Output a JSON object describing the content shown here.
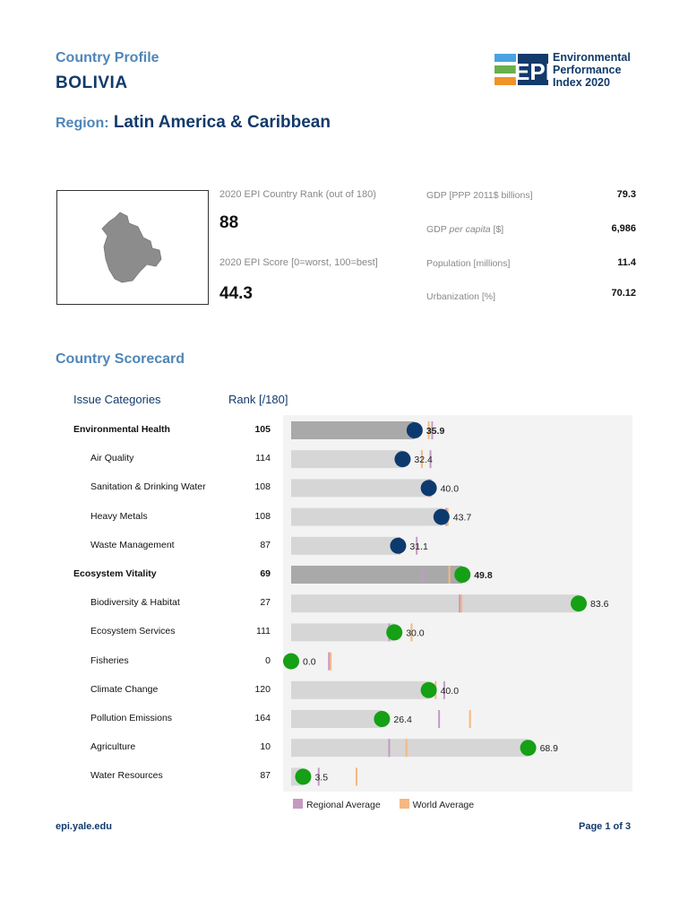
{
  "header": {
    "profile_label": "Country Profile",
    "country": "BOLIVIA",
    "region_label": "Region:",
    "region_value": "Latin America & Caribbean"
  },
  "logo": {
    "acronym": "EPI",
    "lines": [
      "Environmental",
      "Performance",
      "Index 2020"
    ],
    "bar_colors": [
      "#4aa3df",
      "#6ab04c",
      "#f0932b"
    ],
    "block_color": "#123a6b"
  },
  "summary": {
    "rank_label": "2020 EPI Country Rank (out of 180)",
    "rank_value": "88",
    "score_label": "2020 EPI Score [0=worst, 100=best]",
    "score_value": "44.3"
  },
  "stats": [
    {
      "label": "GDP [PPP 2011$ billions]",
      "value": "79.3"
    },
    {
      "label_pre": "GDP ",
      "label_em": "per capita",
      "label_post": " [$]",
      "value": "6,986"
    },
    {
      "label": "Population [millions]",
      "value": "11.4"
    },
    {
      "label": "Urbanization [%]",
      "value": "70.12"
    }
  ],
  "scorecard": {
    "title": "Country Scorecard",
    "issue_header": "Issue Categories",
    "rank_header": "Rank [/180]"
  },
  "chart_data": {
    "type": "bar",
    "xlim": [
      0,
      100
    ],
    "colors": {
      "group_bar": "#a9a9a9",
      "sub_bar": "#d6d6d6",
      "health_dot": "#0d3a6e",
      "vitality_dot": "#15a015",
      "regional": "#c49ac3",
      "world": "#f5b880"
    },
    "legend": [
      "Regional Average",
      "World Average"
    ],
    "rows": [
      {
        "name": "Environmental Health",
        "rank": "105",
        "score": 35.9,
        "label": "35.9",
        "group": true,
        "kind": "health",
        "regional": 41.0,
        "world": 40.0
      },
      {
        "name": "Air Quality",
        "rank": "114",
        "score": 32.4,
        "label": "32.4",
        "group": false,
        "kind": "health",
        "regional": 40.5,
        "world": 38.0
      },
      {
        "name": "Sanitation & Drinking Water",
        "rank": "108",
        "score": 40.0,
        "label": "40.0",
        "group": false,
        "kind": "health",
        "regional": 40.5,
        "world": 40.0
      },
      {
        "name": "Heavy Metals",
        "rank": "108",
        "score": 43.7,
        "label": "43.7",
        "group": false,
        "kind": "health",
        "regional": 45.0,
        "world": 45.5
      },
      {
        "name": "Waste Management",
        "rank": "87",
        "score": 31.1,
        "label": "31.1",
        "group": false,
        "kind": "health",
        "regional": 36.5,
        "world": 31.5
      },
      {
        "name": "Ecosystem Vitality",
        "rank": "69",
        "score": 49.8,
        "label": "49.8",
        "group": true,
        "kind": "vitality",
        "regional": 38.0,
        "world": 46.0
      },
      {
        "name": "Biodiversity & Habitat",
        "rank": "27",
        "score": 83.6,
        "label": "83.6",
        "group": false,
        "kind": "vitality",
        "regional": 49.0,
        "world": 49.5
      },
      {
        "name": "Ecosystem Services",
        "rank": "111",
        "score": 30.0,
        "label": "30.0",
        "group": false,
        "kind": "vitality",
        "regional": 28.5,
        "world": 35.0
      },
      {
        "name": "Fisheries",
        "rank": "0",
        "score": 0.0,
        "label": "0.0",
        "group": false,
        "kind": "vitality",
        "regional": 11.0,
        "world": 11.5
      },
      {
        "name": "Climate Change",
        "rank": "120",
        "score": 40.0,
        "label": "40.0",
        "group": false,
        "kind": "vitality",
        "regional": 44.5,
        "world": 42.0
      },
      {
        "name": "Pollution Emissions",
        "rank": "164",
        "score": 26.4,
        "label": "26.4",
        "group": false,
        "kind": "vitality",
        "regional": 43.0,
        "world": 52.0
      },
      {
        "name": "Agriculture",
        "rank": "10",
        "score": 68.9,
        "label": "68.9",
        "group": false,
        "kind": "vitality",
        "regional": 28.5,
        "world": 33.5
      },
      {
        "name": "Water Resources",
        "rank": "87",
        "score": 3.5,
        "label": "3.5",
        "group": false,
        "kind": "vitality",
        "regional": 8.0,
        "world": 19.0
      }
    ]
  },
  "footer": {
    "url": "epi.yale.edu",
    "page": "Page 1 of 3"
  }
}
